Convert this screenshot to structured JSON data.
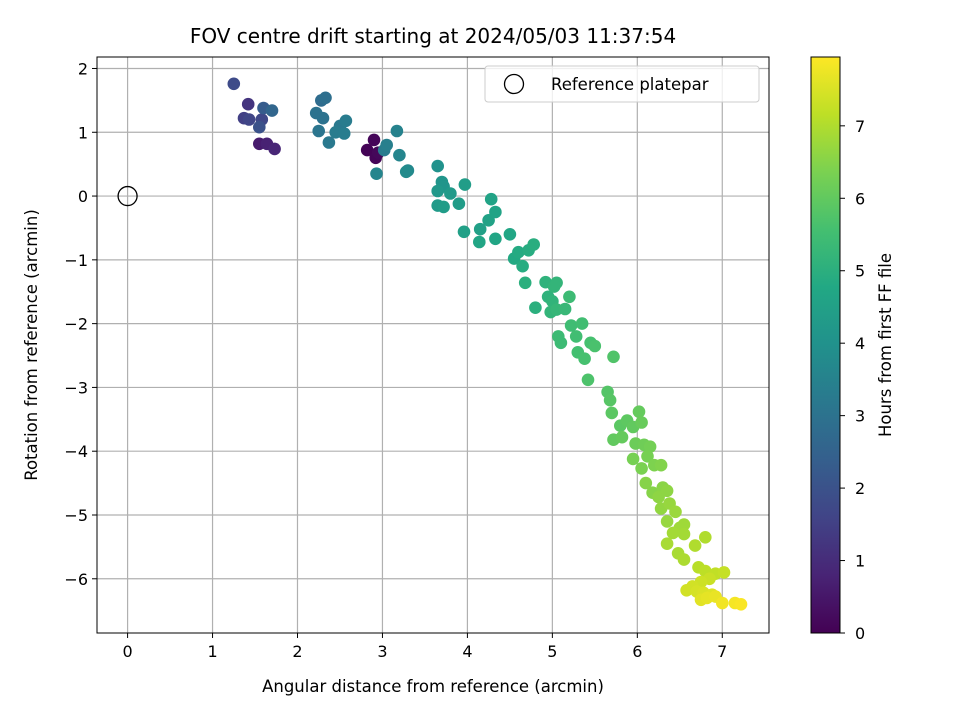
{
  "chart_data": {
    "type": "scatter",
    "title": "FOV centre drift starting at 2024/05/03 11:37:54",
    "xlabel": "Angular distance from reference (arcmin)",
    "ylabel": "Rotation from reference (arcmin)",
    "xlim": [
      -0.36,
      7.55
    ],
    "ylim": [
      -6.85,
      2.18
    ],
    "xticks": [
      0,
      1,
      2,
      3,
      4,
      5,
      6,
      7
    ],
    "yticks": [
      2,
      1,
      0,
      -1,
      -2,
      -3,
      -4,
      -5,
      -6
    ],
    "grid": true,
    "colormap": "viridis",
    "colorbar": {
      "label": "Hours from first FF file",
      "range": [
        0,
        7.95
      ],
      "ticks": [
        0,
        1,
        2,
        3,
        4,
        5,
        6,
        7
      ]
    },
    "legend": {
      "position": "top-right",
      "entries": [
        "Reference platepar"
      ]
    },
    "reference_point": {
      "x": 0,
      "y": 0
    },
    "points": [
      [
        2.82,
        0.72,
        0.05
      ],
      [
        2.92,
        0.6,
        0.1
      ],
      [
        2.9,
        0.88,
        0.12
      ],
      [
        2.95,
        0.68,
        0.15
      ],
      [
        1.55,
        0.82,
        0.6
      ],
      [
        1.64,
        0.82,
        0.75
      ],
      [
        1.73,
        0.74,
        0.85
      ],
      [
        1.42,
        1.44,
        1.2
      ],
      [
        1.37,
        1.22,
        1.5
      ],
      [
        1.43,
        1.2,
        1.65
      ],
      [
        1.58,
        1.2,
        1.7
      ],
      [
        1.25,
        1.76,
        1.8
      ],
      [
        1.55,
        1.08,
        2.0
      ],
      [
        1.6,
        1.38,
        2.3
      ],
      [
        1.7,
        1.34,
        2.6
      ],
      [
        2.28,
        1.5,
        2.8
      ],
      [
        2.33,
        1.54,
        2.9
      ],
      [
        2.22,
        1.3,
        3.0
      ],
      [
        2.3,
        1.22,
        3.0
      ],
      [
        2.25,
        1.02,
        3.1
      ],
      [
        2.37,
        0.84,
        3.2
      ],
      [
        2.5,
        1.1,
        3.2
      ],
      [
        2.57,
        1.18,
        3.3
      ],
      [
        2.45,
        1.0,
        3.3
      ],
      [
        2.55,
        0.98,
        3.35
      ],
      [
        3.02,
        0.72,
        3.3
      ],
      [
        3.05,
        0.8,
        3.4
      ],
      [
        3.17,
        1.02,
        3.5
      ],
      [
        3.2,
        0.64,
        3.6
      ],
      [
        2.93,
        0.35,
        3.6
      ],
      [
        3.3,
        0.4,
        3.7
      ],
      [
        3.28,
        0.38,
        3.8
      ],
      [
        3.65,
        0.47,
        4.0
      ],
      [
        3.7,
        0.22,
        4.1
      ],
      [
        3.72,
        0.15,
        4.1
      ],
      [
        3.65,
        0.08,
        4.2
      ],
      [
        3.8,
        0.04,
        4.3
      ],
      [
        3.9,
        -0.12,
        4.35
      ],
      [
        3.97,
        0.18,
        4.4
      ],
      [
        3.65,
        -0.15,
        4.3
      ],
      [
        3.72,
        -0.17,
        4.35
      ],
      [
        3.96,
        -0.56,
        4.5
      ],
      [
        4.15,
        -0.52,
        4.5
      ],
      [
        4.25,
        -0.38,
        4.55
      ],
      [
        4.28,
        -0.05,
        4.6
      ],
      [
        4.33,
        -0.25,
        4.6
      ],
      [
        4.14,
        -0.72,
        4.65
      ],
      [
        4.33,
        -0.67,
        4.65
      ],
      [
        4.5,
        -0.6,
        4.7
      ],
      [
        4.55,
        -0.98,
        4.8
      ],
      [
        4.6,
        -0.88,
        4.85
      ],
      [
        4.65,
        -1.1,
        4.9
      ],
      [
        4.72,
        -0.85,
        4.9
      ],
      [
        4.78,
        -0.76,
        4.95
      ],
      [
        4.68,
        -1.36,
        5.0
      ],
      [
        4.8,
        -1.75,
        5.0
      ],
      [
        4.92,
        -1.35,
        5.1
      ],
      [
        4.95,
        -1.58,
        5.1
      ],
      [
        5.0,
        -1.65,
        5.15
      ],
      [
        5.02,
        -1.42,
        5.2
      ],
      [
        5.05,
        -1.36,
        5.2
      ],
      [
        4.98,
        -1.82,
        5.2
      ],
      [
        5.05,
        -1.78,
        5.25
      ],
      [
        5.15,
        -1.77,
        5.3
      ],
      [
        5.07,
        -2.2,
        5.4
      ],
      [
        5.1,
        -2.3,
        5.4
      ],
      [
        5.2,
        -1.58,
        5.4
      ],
      [
        5.22,
        -2.03,
        5.45
      ],
      [
        5.28,
        -2.2,
        5.5
      ],
      [
        5.35,
        -2.0,
        5.5
      ],
      [
        5.3,
        -2.45,
        5.55
      ],
      [
        5.38,
        -2.55,
        5.6
      ],
      [
        5.45,
        -2.3,
        5.6
      ],
      [
        5.5,
        -2.35,
        5.65
      ],
      [
        5.42,
        -2.88,
        5.7
      ],
      [
        5.72,
        -2.52,
        5.75
      ],
      [
        5.65,
        -3.07,
        5.8
      ],
      [
        5.68,
        -3.2,
        5.85
      ],
      [
        5.7,
        -3.4,
        5.9
      ],
      [
        5.8,
        -3.6,
        5.9
      ],
      [
        5.88,
        -3.52,
        5.95
      ],
      [
        5.95,
        -3.62,
        6.0
      ],
      [
        5.72,
        -3.82,
        6.0
      ],
      [
        5.82,
        -3.78,
        6.05
      ],
      [
        6.02,
        -3.38,
        6.05
      ],
      [
        6.05,
        -3.55,
        6.1
      ],
      [
        5.98,
        -3.88,
        6.15
      ],
      [
        6.08,
        -3.9,
        6.2
      ],
      [
        6.15,
        -3.93,
        6.25
      ],
      [
        5.95,
        -4.12,
        6.3
      ],
      [
        6.12,
        -4.08,
        6.3
      ],
      [
        6.05,
        -4.27,
        6.35
      ],
      [
        6.2,
        -4.22,
        6.4
      ],
      [
        6.28,
        -4.22,
        6.45
      ],
      [
        6.1,
        -4.5,
        6.5
      ],
      [
        6.18,
        -4.65,
        6.5
      ],
      [
        6.3,
        -4.57,
        6.55
      ],
      [
        6.25,
        -4.72,
        6.6
      ],
      [
        6.35,
        -4.62,
        6.6
      ],
      [
        6.28,
        -4.9,
        6.65
      ],
      [
        6.38,
        -4.82,
        6.7
      ],
      [
        6.35,
        -5.1,
        6.7
      ],
      [
        6.45,
        -4.95,
        6.75
      ],
      [
        6.5,
        -5.2,
        6.8
      ],
      [
        6.55,
        -5.15,
        6.8
      ],
      [
        6.42,
        -5.28,
        6.85
      ],
      [
        6.55,
        -5.3,
        6.85
      ],
      [
        6.35,
        -5.45,
        6.9
      ],
      [
        6.48,
        -5.6,
        6.9
      ],
      [
        6.55,
        -5.7,
        6.95
      ],
      [
        6.68,
        -5.48,
        7.0
      ],
      [
        6.8,
        -5.35,
        7.0
      ],
      [
        6.72,
        -5.82,
        7.1
      ],
      [
        6.8,
        -5.88,
        7.15
      ],
      [
        6.92,
        -5.92,
        7.2
      ],
      [
        7.02,
        -5.9,
        7.25
      ],
      [
        6.85,
        -6.0,
        7.3
      ],
      [
        6.75,
        -6.05,
        7.35
      ],
      [
        6.65,
        -6.12,
        7.4
      ],
      [
        6.58,
        -6.18,
        7.4
      ],
      [
        6.7,
        -6.2,
        7.45
      ],
      [
        6.78,
        -6.22,
        7.5
      ],
      [
        6.88,
        -6.25,
        7.55
      ],
      [
        6.75,
        -6.33,
        7.6
      ],
      [
        6.82,
        -6.3,
        7.65
      ],
      [
        6.92,
        -6.28,
        7.7
      ],
      [
        7.0,
        -6.38,
        7.8
      ],
      [
        7.15,
        -6.38,
        7.85
      ],
      [
        7.22,
        -6.4,
        7.9
      ]
    ]
  }
}
